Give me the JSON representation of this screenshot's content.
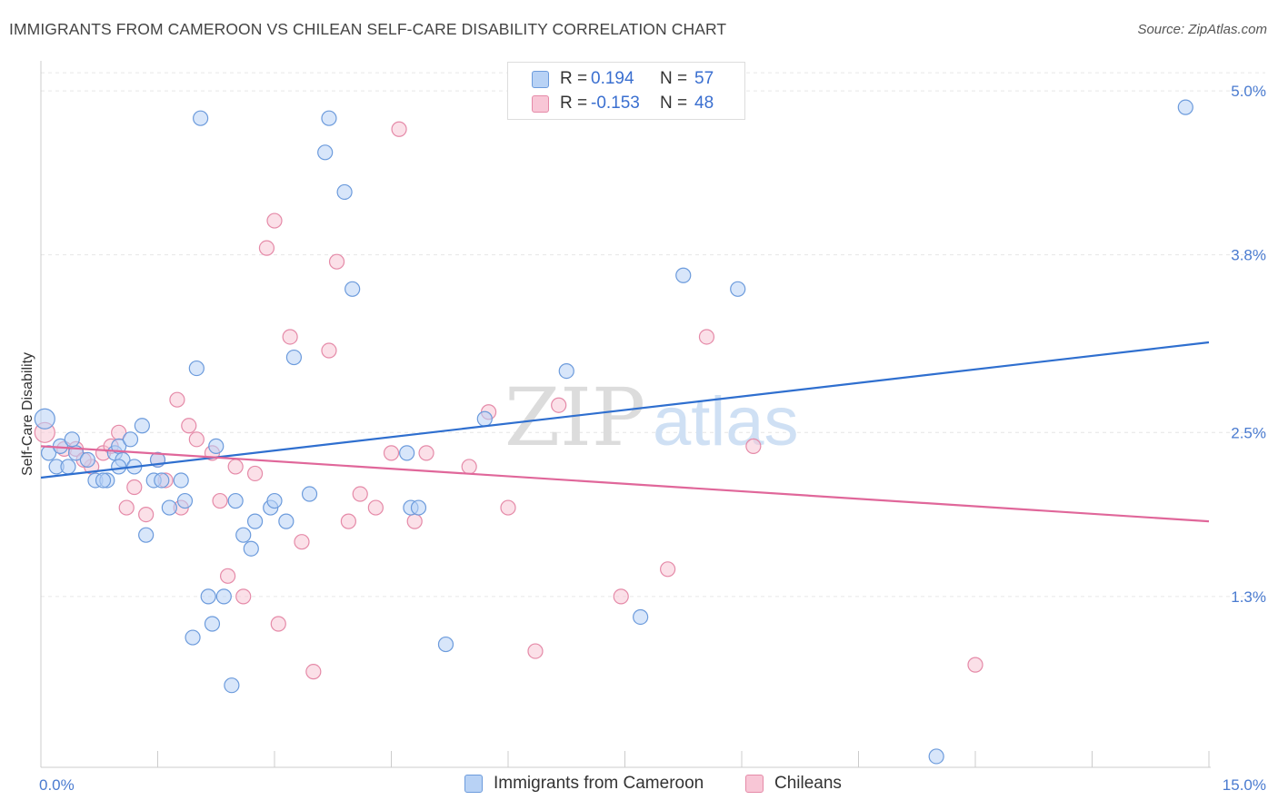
{
  "header": {
    "title": "IMMIGRANTS FROM CAMEROON VS CHILEAN SELF-CARE DISABILITY CORRELATION CHART",
    "source": "Source: ZipAtlas.com"
  },
  "watermark": {
    "zip": "ZIP",
    "atlas": "atlas"
  },
  "legend": {
    "rows": [
      {
        "r_label": "R =",
        "r_value": "0.194",
        "n_label": "N =",
        "n_value": "57"
      },
      {
        "r_label": "R =",
        "r_value": "-0.153",
        "n_label": "N =",
        "n_value": "48"
      }
    ]
  },
  "bottom_legend": {
    "items": [
      "Immigrants from Cameroon",
      "Chileans"
    ]
  },
  "colors": {
    "blue_fill": "#b8d2f5",
    "blue_stroke": "#6c9bdc",
    "blue_line": "#2f6fcf",
    "pink_fill": "#f8c6d6",
    "pink_stroke": "#e58aa8",
    "pink_line": "#e0679a",
    "tick_label": "#4a7bd0",
    "grid": "#e6e6e6"
  },
  "chart_data": {
    "type": "scatter",
    "title": "IMMIGRANTS FROM CAMEROON VS CHILEAN SELF-CARE DISABILITY CORRELATION CHART",
    "xlabel": "",
    "ylabel": "Self-Care Disability",
    "xlim": [
      0,
      15
    ],
    "ylim": [
      0.05,
      5.2
    ],
    "x_tick_labels": [
      {
        "value": 0,
        "label": "0.0%"
      },
      {
        "value": 15,
        "label": "15.0%"
      }
    ],
    "y_ticks": [
      {
        "value": 1.3,
        "label": "1.3%"
      },
      {
        "value": 2.5,
        "label": "2.5%"
      },
      {
        "value": 3.8,
        "label": "3.8%"
      },
      {
        "value": 5.0,
        "label": "5.0%"
      }
    ],
    "grid": true,
    "legend_position": "top-center",
    "series": [
      {
        "name": "Immigrants from Cameroon",
        "color": "#6c9bdc",
        "trend": {
          "x": [
            0,
            15
          ],
          "y": [
            2.17,
            3.16
          ]
        },
        "points": [
          [
            0.05,
            2.6
          ],
          [
            0.1,
            2.35
          ],
          [
            0.2,
            2.25
          ],
          [
            0.25,
            2.4
          ],
          [
            0.35,
            2.25
          ],
          [
            0.45,
            2.35
          ],
          [
            0.6,
            2.3
          ],
          [
            0.7,
            2.15
          ],
          [
            0.85,
            2.15
          ],
          [
            0.95,
            2.35
          ],
          [
            1.0,
            2.4
          ],
          [
            1.05,
            2.3
          ],
          [
            1.2,
            2.25
          ],
          [
            1.15,
            2.45
          ],
          [
            1.3,
            2.55
          ],
          [
            1.45,
            2.15
          ],
          [
            1.55,
            2.15
          ],
          [
            1.65,
            1.95
          ],
          [
            1.85,
            2.0
          ],
          [
            1.95,
            1.0
          ],
          [
            2.0,
            2.97
          ],
          [
            2.05,
            4.8
          ],
          [
            2.15,
            1.3
          ],
          [
            2.35,
            1.3
          ],
          [
            2.25,
            2.4
          ],
          [
            2.45,
            0.65
          ],
          [
            2.75,
            1.85
          ],
          [
            2.95,
            1.95
          ],
          [
            2.7,
            1.65
          ],
          [
            3.15,
            1.85
          ],
          [
            3.25,
            3.05
          ],
          [
            3.45,
            2.05
          ],
          [
            3.65,
            4.55
          ],
          [
            3.7,
            4.8
          ],
          [
            3.9,
            4.26
          ],
          [
            4.0,
            3.55
          ],
          [
            4.7,
            2.35
          ],
          [
            4.75,
            1.95
          ],
          [
            4.85,
            1.95
          ],
          [
            5.2,
            0.95
          ],
          [
            1.8,
            2.15
          ],
          [
            2.5,
            2.0
          ],
          [
            2.6,
            1.75
          ],
          [
            3.0,
            2.0
          ],
          [
            0.4,
            2.45
          ],
          [
            0.8,
            2.15
          ],
          [
            1.35,
            1.75
          ],
          [
            1.5,
            2.3
          ],
          [
            1.0,
            2.25
          ],
          [
            2.2,
            1.1
          ],
          [
            5.7,
            2.6
          ],
          [
            6.75,
            2.95
          ],
          [
            7.7,
            1.15
          ],
          [
            8.25,
            3.65
          ],
          [
            8.95,
            3.55
          ],
          [
            11.5,
            0.13
          ],
          [
            14.7,
            4.88
          ]
        ]
      },
      {
        "name": "Chileans",
        "color": "#e58aa8",
        "trend": {
          "x": [
            0,
            15
          ],
          "y": [
            2.4,
            1.85
          ]
        },
        "points": [
          [
            0.05,
            2.5
          ],
          [
            0.3,
            2.38
          ],
          [
            0.45,
            2.38
          ],
          [
            0.65,
            2.25
          ],
          [
            0.8,
            2.35
          ],
          [
            0.9,
            2.4
          ],
          [
            1.0,
            2.5
          ],
          [
            1.1,
            1.95
          ],
          [
            1.2,
            2.1
          ],
          [
            1.35,
            1.9
          ],
          [
            1.5,
            2.3
          ],
          [
            1.6,
            2.15
          ],
          [
            1.75,
            2.74
          ],
          [
            1.9,
            2.55
          ],
          [
            2.0,
            2.45
          ],
          [
            2.2,
            2.35
          ],
          [
            2.3,
            2.0
          ],
          [
            2.4,
            1.45
          ],
          [
            2.5,
            2.25
          ],
          [
            2.6,
            1.3
          ],
          [
            2.75,
            2.2
          ],
          [
            2.9,
            3.85
          ],
          [
            3.0,
            4.05
          ],
          [
            3.05,
            1.1
          ],
          [
            3.2,
            3.2
          ],
          [
            3.35,
            1.7
          ],
          [
            3.5,
            0.75
          ],
          [
            3.7,
            3.1
          ],
          [
            3.8,
            3.75
          ],
          [
            3.95,
            1.85
          ],
          [
            4.1,
            2.05
          ],
          [
            4.3,
            1.95
          ],
          [
            4.5,
            2.35
          ],
          [
            4.6,
            4.72
          ],
          [
            4.8,
            1.85
          ],
          [
            4.95,
            2.35
          ],
          [
            5.5,
            2.25
          ],
          [
            5.75,
            2.65
          ],
          [
            6.0,
            1.95
          ],
          [
            6.35,
            0.9
          ],
          [
            6.65,
            2.7
          ],
          [
            7.45,
            1.3
          ],
          [
            8.05,
            1.5
          ],
          [
            8.55,
            3.2
          ],
          [
            9.15,
            2.4
          ],
          [
            12.0,
            0.8
          ],
          [
            1.8,
            1.95
          ],
          [
            0.55,
            2.3
          ]
        ]
      }
    ]
  }
}
